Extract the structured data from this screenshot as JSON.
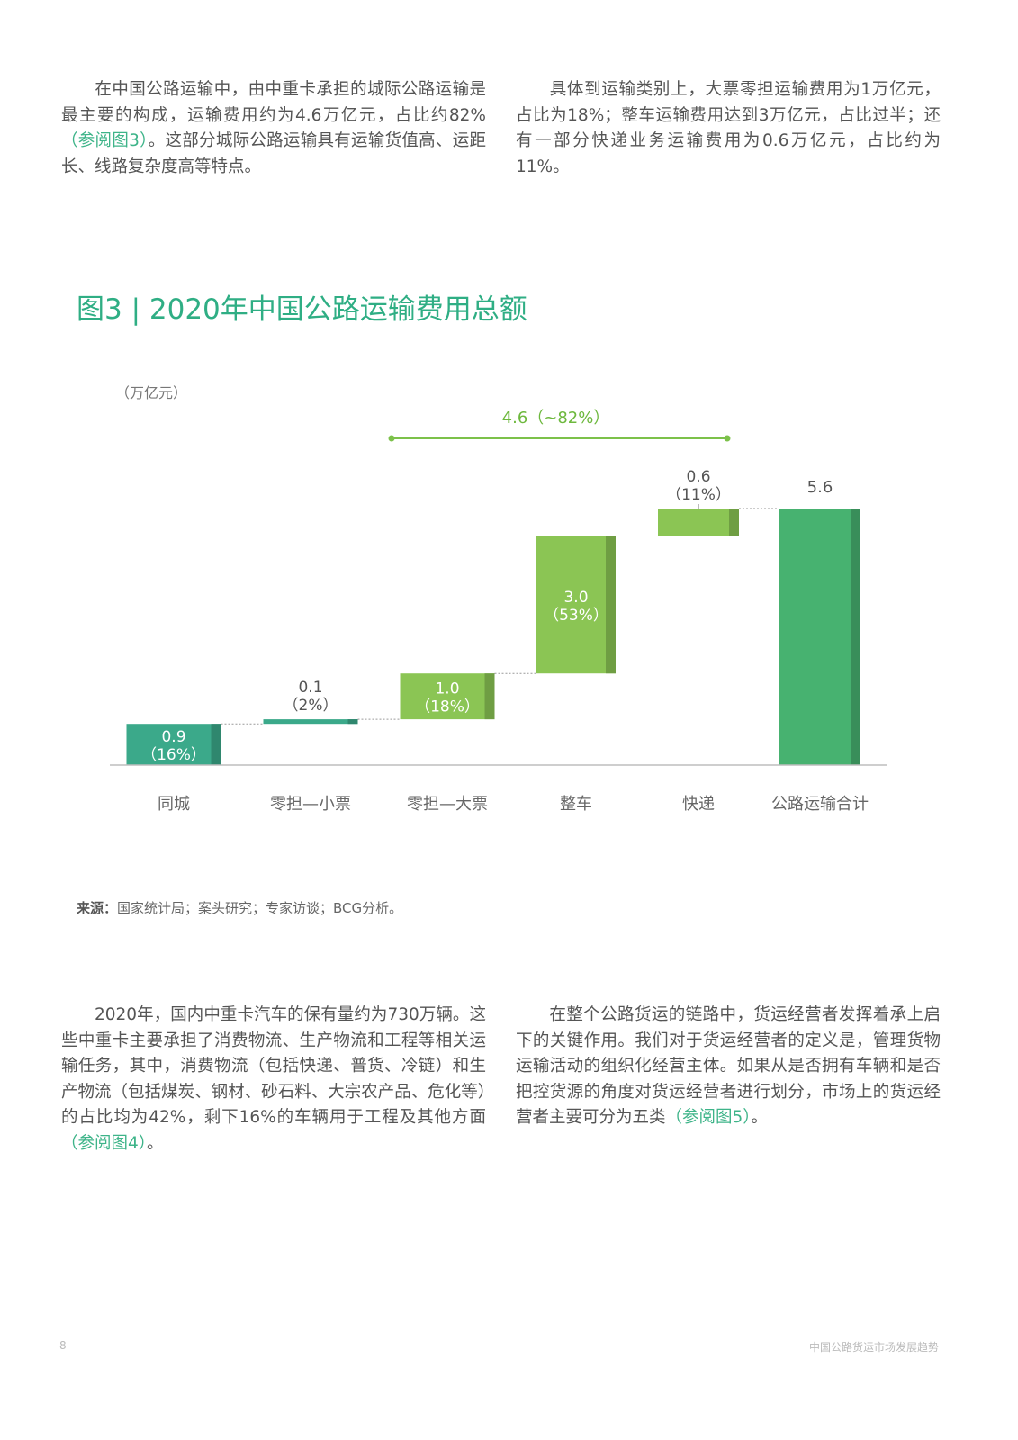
{
  "paragraphs": {
    "p1": {
      "text_before": "在中国公路运输中，由中重卡承担的城际公路运输是最主要的构成，运输费用约为4.6万亿元，占比约82%",
      "ref": "（参阅图3）",
      "text_after": "。这部分城际公路运输具有运输货值高、运距长、线路复杂度高等特点。"
    },
    "p2": {
      "text": "具体到运输类别上，大票零担运输费用为1万亿元，占比为18%；整车运输费用达到3万亿元，占比过半；还有一部分快递业务运输费用为0.6万亿元，占比约为11%。"
    },
    "p3": {
      "text_before": "2020年，国内中重卡汽车的保有量约为730万辆。这些中重卡主要承担了消费物流、生产物流和工程等相关运输任务，其中，消费物流（包括快递、普货、冷链）和生产物流（包括煤炭、钢材、砂石料、大宗农产品、危化等）的占比均为42%，剩下16%的车辆用于工程及其他方面",
      "ref": "（参阅图4）",
      "text_after": "。"
    },
    "p4": {
      "text_before": "在整个公路货运的链路中，货运经营者发挥着承上启下的关键作用。我们对于货运经营者的定义是，管理货物运输活动的组织化经营主体。如果从是否拥有车辆和是否把控货源的角度对货运经营者进行划分，市场上的货运经营者主要可分为五类",
      "ref": "（参阅图5）",
      "text_after": "。"
    }
  },
  "figure_title": "图3 | 2020年中国公路运输费用总额",
  "source": {
    "label": "来源：",
    "text": "国家统计局；案头研究；专家访谈；BCG分析。"
  },
  "footer": {
    "page_number": "8",
    "title": "中国公路货运市场发展趋势"
  },
  "colors": {
    "teal": "#3ba98a",
    "light_green": "#8bc554",
    "green": "#47b270",
    "heading": "#2fae84"
  },
  "chart_data": {
    "type": "bar",
    "subtype": "waterfall",
    "unit_label": "（万亿元）",
    "categories": [
      "同城",
      "零担—小票",
      "零担—大票",
      "整车",
      "快递",
      "公路运输合计"
    ],
    "values": [
      0.9,
      0.1,
      1.0,
      3.0,
      0.6,
      5.6
    ],
    "value_labels": [
      "0.9",
      "0.1",
      "1.0",
      "3.0",
      "0.6",
      "5.6"
    ],
    "share_labels": [
      "（16%）",
      "（2%）",
      "（18%）",
      "（53%）",
      "（11%）",
      ""
    ],
    "bar_colors": [
      "#3ba98a",
      "#3ba98a",
      "#8bc554",
      "#8bc554",
      "#8bc554",
      "#47b270"
    ],
    "is_total": [
      false,
      false,
      false,
      false,
      false,
      true
    ],
    "bracket": {
      "label": "4.6（~82%）",
      "from_category": "零担—大票",
      "to_category": "快递"
    },
    "ylim": [
      0,
      5.6
    ]
  }
}
